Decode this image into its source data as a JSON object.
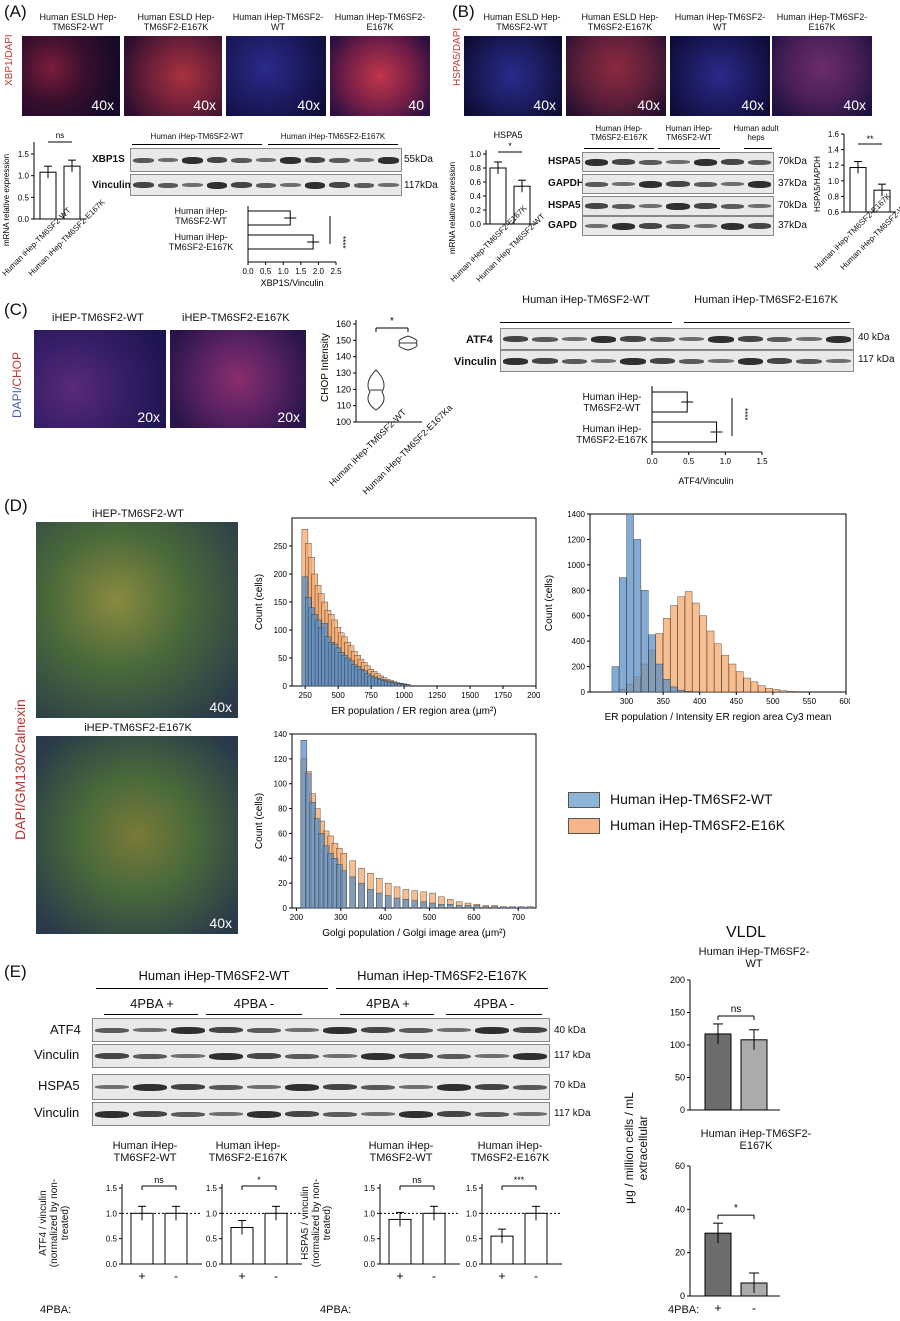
{
  "panels": {
    "A": {
      "label": "(A)",
      "stain": "XBP1/DAPI",
      "images": [
        {
          "title": "Human ESLD Hep-TM6SF2-WT",
          "mag": "40x"
        },
        {
          "title": "Human ESLD Hep-TM6SF2-E167K",
          "mag": "40x"
        },
        {
          "title": "Human iHep-TM6SF2-WT",
          "mag": "40x"
        },
        {
          "title": "Human iHep-TM6SF2-E167K",
          "mag": "40"
        }
      ],
      "mrna_chart": {
        "ylabel": "mRNA relative expression",
        "sig": "ns",
        "ticks": [
          "0.0",
          "0.5",
          "1.0",
          "1.5"
        ],
        "cats": [
          "Human iHep-TM6SF2-WT",
          "Human iHep-TM6SF2-E167K"
        ]
      },
      "blot": {
        "groups": [
          "Human iHep-TM6SF2-WT",
          "Human iHep-TM6SF2-E167K"
        ],
        "rows": [
          "XBP1S",
          "Vinculin"
        ],
        "sizes": [
          "55kDa",
          "117kDa"
        ]
      },
      "hbar": {
        "cats": [
          "Human iHep-TM6SF2-WT",
          "Human iHep-TM6SF2-E167K"
        ],
        "sig": "****",
        "xlabel": "XBP1S/Vinculin",
        "ticks": [
          "0.0",
          "0.5",
          "1.0",
          "1.5",
          "2.0",
          "2.5"
        ]
      }
    },
    "B": {
      "label": "(B)",
      "stain": "HSPA5/DAPI",
      "images": [
        {
          "title": "Human ESLD Hep-TM6SF2-WT",
          "mag": "40x"
        },
        {
          "title": "Human ESLD Hep-TM6SF2-E167K",
          "mag": "40x"
        },
        {
          "title": "Human iHep-TM6SF2-WT",
          "mag": "40x"
        },
        {
          "title": "Human iHep-TM6SF2-E167K",
          "mag": "40x"
        }
      ],
      "mrna_chart": {
        "title": "HSPA5",
        "ylabel": "mRNA relative expression",
        "sig": "*",
        "ticks": [
          "0.0",
          "0.2",
          "0.4",
          "0.6",
          "0.8",
          "1.0"
        ],
        "cats": [
          "Human iHep-TM6SF2-E167K",
          "Human iHep-TM6SF2-WT"
        ]
      },
      "blot": {
        "groups": [
          "Human iHep-TM6SF2-E167K",
          "Human iHep-TM6SF2-WT",
          "Human adult heps"
        ],
        "rows": [
          "HSPA5",
          "GAPDH",
          "HSPA5",
          "GAPD"
        ],
        "sizes": [
          "70kDa",
          "37kDa",
          "70kDa",
          "37kDa"
        ]
      },
      "ratio_chart": {
        "ylabel": "HSPA5/HAPDH",
        "sig": "**",
        "ticks": [
          "0.6",
          "0.8",
          "1.0",
          "1.2",
          "1.4",
          "1.6"
        ],
        "cats": [
          "Human iHep-TM6SF2-E167K",
          "Human iHep-TM6SF2-WT"
        ]
      }
    },
    "C": {
      "label": "(C)",
      "stain_dapi": "DAPI/",
      "stain_chop": "CHOP",
      "images": [
        {
          "title": "iHEP-TM6SF2-WT",
          "mag": "20x"
        },
        {
          "title": "iHEP-TM6SF2-E167K",
          "mag": "20x"
        }
      ],
      "violin": {
        "ylabel": "CHOP Intensity",
        "sig": "*",
        "ticks": [
          "100",
          "110",
          "120",
          "130",
          "140",
          "150",
          "160"
        ],
        "cats": [
          "Human iHep-TM6SF2-WT",
          "Human iHep-TM6SF2-E167Ka"
        ]
      },
      "blot": {
        "groups": [
          "Human iHep-TM6SF2-WT",
          "Human iHep-TM6SF2-E167K"
        ],
        "rows": [
          "ATF4",
          "Vinculin"
        ],
        "sizes": [
          "40 kDa",
          "117 kDa"
        ]
      },
      "hbar": {
        "cats": [
          "Human iHep-TM6SF2-WT",
          "Human iHep-TM6SF2-E167K"
        ],
        "sig": "****",
        "xlabel": "ATF4/Vinculin",
        "ticks": [
          "0.0",
          "0.5",
          "1.0",
          "1.5"
        ]
      }
    },
    "D": {
      "label": "(D)",
      "stain": "DAPI/GM130/Calnexin",
      "images": [
        {
          "title": "iHEP-TM6SF2-WT",
          "mag": "40x"
        },
        {
          "title": "iHEP-TM6SF2-E167K",
          "mag": "40x"
        }
      ],
      "legend": [
        "Human iHep-TM6SF2-WT",
        "Human iHep-TM6SF2-E16K"
      ]
    },
    "E": {
      "label": "(E)",
      "groups": [
        "Human iHep-TM6SF2-WT",
        "Human iHep-TM6SF2-E167K"
      ],
      "treat": [
        "4PBA +",
        "4PBA -",
        "4PBA +",
        "4PBA -"
      ],
      "rows": [
        "ATF4",
        "Vinculin",
        "HSPA5",
        "Vinculin"
      ],
      "sizes": [
        "40 kDa",
        "117 kDa",
        "70 kDa",
        "117 kDa"
      ],
      "small_charts": [
        {
          "title": "Human iHep-TM6SF2-WT",
          "sig": "ns"
        },
        {
          "title": "Human iHep-TM6SF2-E167K",
          "sig": "*"
        },
        {
          "title": "Human iHep-TM6SF2-WT",
          "sig": "ns"
        },
        {
          "title": "Human iHep-TM6SF2-E167K",
          "sig": "***"
        }
      ],
      "ylabel1": "ATF4 / vinculin (normalized by non-treated)",
      "ylabel2": "HSPA5 / vinculin (normalized by non-treated)",
      "ticks": [
        "0.0",
        "0.5",
        "1.0",
        "1.5"
      ],
      "pba_label": "4PBA:",
      "plus": "+",
      "minus": "-",
      "vldl": {
        "title": "VLDL",
        "sub1": "Human iHep-TM6SF2-WT",
        "sub2": "Human iHep-TM6SF2-E167K",
        "ylabel": "μg / million cells / mL extracellular",
        "sig1": "ns",
        "sig2": "*",
        "ticks1": [
          "0",
          "50",
          "100",
          "150",
          "200"
        ],
        "ticks2": [
          "0",
          "20",
          "40",
          "60"
        ]
      }
    }
  },
  "chart_data": [
    {
      "type": "bar",
      "name": "A-mRNA",
      "categories": [
        "Human iHep-TM6SF2-WT",
        "Human iHep-TM6SF2-E167K"
      ],
      "values": [
        1.08,
        1.22
      ],
      "ylim": [
        0,
        1.5
      ]
    },
    {
      "type": "bar",
      "name": "A-XBP1S",
      "categories": [
        "Human iHep-TM6SF2-WT",
        "Human iHep-TM6SF2-E167K"
      ],
      "values": [
        1.2,
        1.85
      ],
      "xlim": [
        0,
        2.5
      ]
    },
    {
      "type": "bar",
      "name": "B-HSPA5-mRNA",
      "categories": [
        "Human iHep-TM6SF2-E167K",
        "Human iHep-TM6SF2-WT"
      ],
      "values": [
        0.8,
        0.54
      ],
      "ylim": [
        0,
        1.0
      ]
    },
    {
      "type": "bar",
      "name": "B-HSPA5/HAPDH",
      "categories": [
        "Human iHep-TM6SF2-E167K",
        "Human iHep-TM6SF2-WT"
      ],
      "values": [
        1.17,
        0.88
      ],
      "ylim": [
        0.6,
        1.6
      ]
    },
    {
      "type": "bar",
      "name": "C-ATF4",
      "categories": [
        "Human iHep-TM6SF2-WT",
        "Human iHep-TM6SF2-E167K"
      ],
      "values": [
        0.48,
        0.88
      ],
      "xlim": [
        0,
        1.5
      ]
    },
    {
      "type": "bar",
      "name": "D-ER-area",
      "x": [
        225,
        250,
        275,
        300,
        325,
        350,
        375,
        400,
        425,
        450,
        475,
        500,
        525,
        550,
        575,
        600,
        625,
        650,
        675,
        700,
        725,
        750,
        775,
        800,
        825,
        850,
        875,
        900,
        925,
        950,
        975,
        1000
      ],
      "series": [
        {
          "name": "Human iHep-TM6SF2-WT",
          "values": [
            195,
            158,
            140,
            128,
            118,
            105,
            112,
            88,
            78,
            75,
            68,
            60,
            55,
            50,
            45,
            38,
            35,
            30,
            27,
            22,
            18,
            16,
            14,
            12,
            10,
            8,
            7,
            6,
            5,
            4,
            3,
            2
          ]
        },
        {
          "name": "Human iHep-TM6SF2-E16K",
          "values": [
            280,
            255,
            230,
            200,
            180,
            165,
            150,
            135,
            128,
            118,
            105,
            95,
            88,
            78,
            72,
            62,
            55,
            48,
            42,
            36,
            30,
            26,
            22,
            18,
            15,
            12,
            10,
            8,
            6,
            5,
            4,
            3
          ]
        }
      ],
      "xlim": [
        150,
        2000
      ],
      "ylim": [
        0,
        300
      ]
    },
    {
      "type": "bar",
      "name": "D-ER-intensity",
      "x": [
        280,
        290,
        300,
        310,
        320,
        330,
        340,
        350,
        360,
        370,
        380,
        390,
        400,
        410,
        420,
        430,
        440,
        450,
        460,
        470,
        480,
        490,
        500,
        510,
        520
      ],
      "series": [
        {
          "name": "Human iHep-TM6SF2-WT",
          "values": [
            200,
            900,
            1400,
            1200,
            800,
            450,
            220,
            100,
            40,
            15,
            5,
            2,
            0,
            0,
            0,
            0,
            0,
            0,
            0,
            0,
            0,
            0,
            0,
            0,
            0
          ]
        },
        {
          "name": "Human iHep-TM6SF2-E16K",
          "values": [
            5,
            20,
            60,
            120,
            220,
            330,
            460,
            580,
            680,
            750,
            790,
            700,
            600,
            480,
            380,
            290,
            220,
            160,
            110,
            80,
            50,
            30,
            20,
            10,
            5
          ]
        }
      ],
      "xlim": [
        250,
        600
      ],
      "ylim": [
        0,
        1400
      ]
    },
    {
      "type": "bar",
      "name": "D-Golgi",
      "x": [
        210,
        220,
        230,
        240,
        250,
        260,
        270,
        280,
        290,
        300,
        320,
        340,
        360,
        380,
        400,
        420,
        440,
        460,
        480,
        500,
        520,
        540,
        560,
        580,
        600,
        620,
        640,
        660,
        680,
        700,
        720
      ],
      "series": [
        {
          "name": "Human iHep-TM6SF2-WT",
          "values": [
            135,
            108,
            85,
            72,
            60,
            50,
            44,
            40,
            35,
            30,
            25,
            20,
            15,
            12,
            10,
            8,
            7,
            6,
            5,
            4,
            3,
            3,
            2,
            2,
            2,
            1,
            1,
            1,
            1,
            1,
            1
          ]
        },
        {
          "name": "Human iHep-TM6SF2-E16K",
          "values": [
            120,
            110,
            92,
            80,
            70,
            62,
            58,
            52,
            48,
            44,
            38,
            32,
            28,
            24,
            20,
            17,
            15,
            14,
            13,
            12,
            9,
            7,
            5,
            4,
            3,
            2,
            2,
            1,
            1,
            1,
            1
          ]
        }
      ],
      "xlim": [
        190,
        740
      ],
      "ylim": [
        0,
        140
      ]
    },
    {
      "type": "bar",
      "name": "E-ATF4-WT",
      "categories": [
        "+",
        "-"
      ],
      "values": [
        1.0,
        1.0
      ],
      "ylim": [
        0,
        1.5
      ]
    },
    {
      "type": "bar",
      "name": "E-ATF4-E167K",
      "categories": [
        "+",
        "-"
      ],
      "values": [
        0.72,
        1.0
      ],
      "ylim": [
        0,
        1.5
      ]
    },
    {
      "type": "bar",
      "name": "E-HSPA5-WT",
      "categories": [
        "+",
        "-"
      ],
      "values": [
        0.88,
        1.0
      ],
      "ylim": [
        0,
        1.5
      ]
    },
    {
      "type": "bar",
      "name": "E-HSPA5-E167K",
      "categories": [
        "+",
        "-"
      ],
      "values": [
        0.55,
        1.0
      ],
      "ylim": [
        0,
        1.5
      ]
    },
    {
      "type": "bar",
      "name": "E-VLDL-WT",
      "categories": [
        "+",
        "-"
      ],
      "values": [
        117,
        108
      ],
      "ylim": [
        0,
        200
      ]
    },
    {
      "type": "bar",
      "name": "E-VLDL-E167K",
      "categories": [
        "+",
        "-"
      ],
      "values": [
        29,
        6
      ],
      "ylim": [
        0,
        60
      ]
    }
  ],
  "colors": {
    "wt_blue": "#5b8fc4",
    "mut_orange": "#f5a86a",
    "gray_dark": "#6d6d6d",
    "gray_light": "#ababab"
  }
}
